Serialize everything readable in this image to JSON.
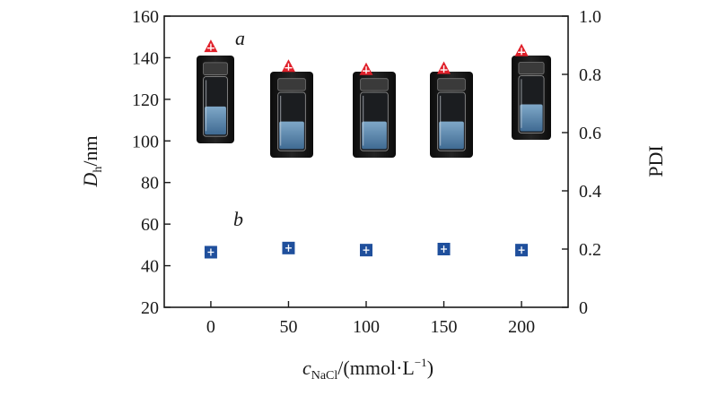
{
  "chart_data": {
    "type": "scatter",
    "x": [
      0,
      50,
      100,
      150,
      200
    ],
    "xlim": [
      -30,
      230
    ],
    "x_ticks": [
      "0",
      "50",
      "100",
      "150",
      "200"
    ],
    "xlabel": {
      "main": "c",
      "sub": "NaCl",
      "rest": "/(mmol·L",
      "sup": "−1",
      "end": ")"
    },
    "y_left": {
      "label_main": "D",
      "label_sub": "h",
      "label_rest": "/nm",
      "lim": [
        20,
        160
      ],
      "ticks": [
        "20",
        "40",
        "60",
        "80",
        "100",
        "120",
        "140",
        "160"
      ]
    },
    "y_right": {
      "label": "PDI",
      "lim": [
        0,
        1.0
      ],
      "ticks": [
        "0",
        "0.2",
        "0.4",
        "0.6",
        "0.8",
        "1.0"
      ]
    },
    "series": [
      {
        "name": "a",
        "axis": "left",
        "marker": "triangle",
        "color": "#e0202a",
        "values": [
          145.5,
          136,
          134.5,
          135,
          143.5
        ]
      },
      {
        "name": "b",
        "axis": "left",
        "marker": "square",
        "color": "#1f4f9c",
        "values": [
          46.5,
          48.5,
          47.5,
          48,
          47.5
        ]
      }
    ],
    "insets": {
      "description_icon": "vial-photo-icon",
      "count": 5
    }
  }
}
